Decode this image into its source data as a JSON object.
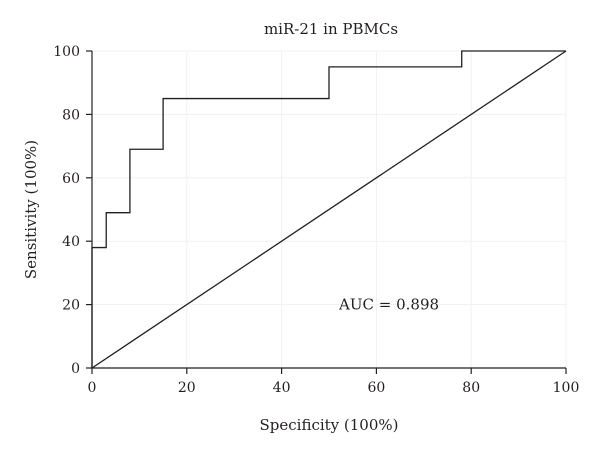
{
  "chart_data": {
    "type": "line",
    "title": "miR-21 in PBMCs",
    "xlabel": "Specificity (100%)",
    "ylabel": "Sensitivity (100%)",
    "xlim": [
      0,
      100
    ],
    "ylim": [
      0,
      100
    ],
    "xticks": [
      0,
      20,
      40,
      60,
      80,
      100
    ],
    "yticks": [
      0,
      20,
      40,
      60,
      80,
      100
    ],
    "grid": true,
    "series": [
      {
        "step_points": [
          [
            0,
            0
          ],
          [
            0,
            38
          ],
          [
            3,
            38
          ],
          [
            3,
            49
          ],
          [
            8,
            49
          ],
          [
            8,
            69
          ],
          [
            15,
            69
          ],
          [
            15,
            85
          ],
          [
            50,
            85
          ],
          [
            50,
            95
          ],
          [
            78,
            95
          ],
          [
            78,
            100
          ],
          [
            100,
            100
          ]
        ]
      },
      {
        "points": [
          [
            0,
            0
          ],
          [
            100,
            100
          ]
        ]
      }
    ],
    "annotation": {
      "text": "AUC = 0.898",
      "x": 69,
      "y": 20
    }
  }
}
